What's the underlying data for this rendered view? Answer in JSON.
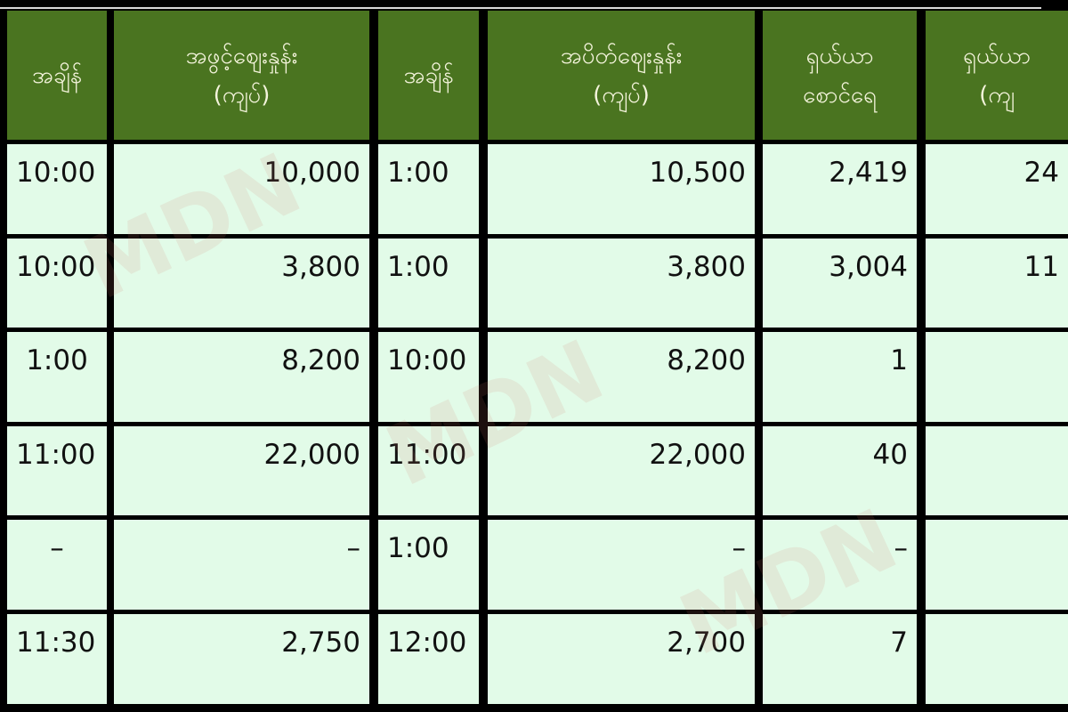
{
  "headers": [
    {
      "line1": "အချိန်",
      "line2": ""
    },
    {
      "line1": "အဖွင့်ဈေးနှုန်း",
      "line2": "(ကျပ်)"
    },
    {
      "line1": "အချိန်",
      "line2": ""
    },
    {
      "line1": "အပိတ်ဈေးနှုန်း",
      "line2": "(ကျပ်)"
    },
    {
      "line1": "ရှယ်ယာ",
      "line2": "စောင်ရေ"
    },
    {
      "line1": "ရှယ်ယာ",
      "line2": "(ကျ"
    }
  ],
  "rows": [
    {
      "open_time": "10:00",
      "open_price": "10,000",
      "close_time": "1:00",
      "close_price": "10,500",
      "shares": "2,419",
      "value": "24"
    },
    {
      "open_time": "10:00",
      "open_price": "3,800",
      "close_time": "1:00",
      "close_price": "3,800",
      "shares": "3,004",
      "value": "11"
    },
    {
      "open_time": "1:00",
      "open_price": "8,200",
      "close_time": "10:00",
      "close_price": "8,200",
      "shares": "1",
      "value": ""
    },
    {
      "open_time": "11:00",
      "open_price": "22,000",
      "close_time": "11:00",
      "close_price": "22,000",
      "shares": "40",
      "value": ""
    },
    {
      "open_time": "–",
      "open_price": "–",
      "close_time": "1:00",
      "close_price": "–",
      "shares": "–",
      "value": ""
    },
    {
      "open_time": "11:30",
      "open_price": "2,750",
      "close_time": "12:00",
      "close_price": "2,700",
      "shares": "7",
      "value": ""
    }
  ],
  "watermark": "MDN"
}
